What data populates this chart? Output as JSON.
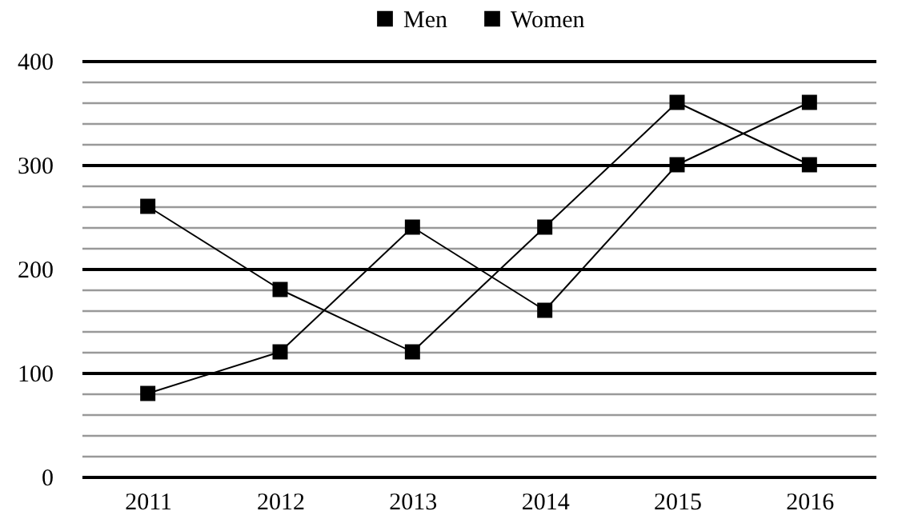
{
  "chart_data": {
    "type": "line",
    "categories": [
      "2011",
      "2012",
      "2013",
      "2014",
      "2015",
      "2016"
    ],
    "series": [
      {
        "name": "Men",
        "color": "#000000",
        "values": [
          260,
          180,
          120,
          240,
          360,
          300
        ]
      },
      {
        "name": "Women",
        "color": "#000000",
        "values": [
          80,
          120,
          240,
          160,
          300,
          360
        ]
      }
    ],
    "ylim": [
      0,
      400
    ],
    "yticks": [
      0,
      {
        "value": 20,
        "label": null
      },
      {
        "value": 40,
        "label": null
      },
      {
        "value": 60,
        "label": null
      },
      {
        "value": 80,
        "label": null
      },
      100,
      {
        "value": 120,
        "label": null
      },
      {
        "value": 140,
        "label": null
      },
      {
        "value": 160,
        "label": null
      },
      {
        "value": 180,
        "label": null
      },
      200,
      {
        "value": 220,
        "label": null
      },
      {
        "value": 240,
        "label": null
      },
      {
        "value": 260,
        "label": null
      },
      {
        "value": 280,
        "label": null
      },
      300,
      {
        "value": 320,
        "label": null
      },
      {
        "value": 340,
        "label": null
      },
      {
        "value": 360,
        "label": null
      },
      {
        "value": 380,
        "label": null
      },
      400
    ],
    "grid": "y",
    "legend": "top",
    "marker": "square",
    "line_style": "solid"
  }
}
